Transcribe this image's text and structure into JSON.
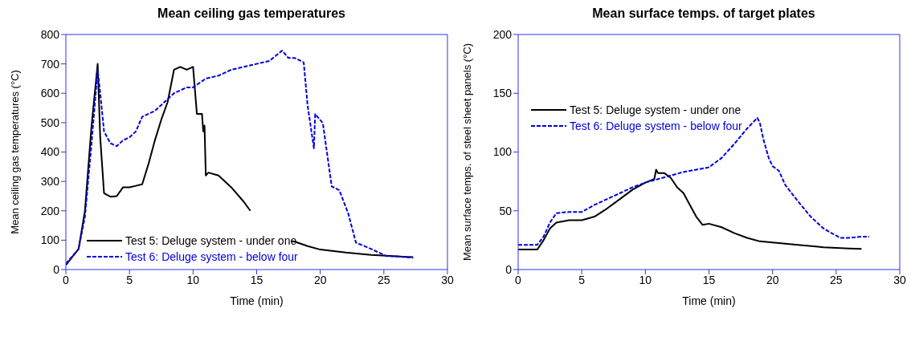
{
  "chart_data": [
    {
      "type": "line",
      "title": "Mean ceiling gas temperatures",
      "xlabel": "Time (min)",
      "ylabel": "Mean ceiling gas temperatures (°C)",
      "xlim": [
        0,
        30
      ],
      "xticks": [
        0,
        5,
        10,
        15,
        20,
        25,
        30
      ],
      "ylim": [
        0,
        800
      ],
      "yticks": [
        0,
        100,
        200,
        300,
        400,
        500,
        600,
        700,
        800
      ],
      "legend": "bottom left",
      "marker": "none",
      "series": [
        {
          "name": "Test 5: Deluge system - under one",
          "color": "#000000",
          "line_style": "solid",
          "x": [
            0,
            1,
            1.5,
            2,
            2.5,
            2.7,
            3,
            3.5,
            4,
            4.5,
            5,
            5.5,
            6,
            6.5,
            7,
            7.5,
            8,
            8.5,
            9,
            9.5,
            10,
            10.3,
            10.7,
            10.8,
            10.9,
            11,
            11.2,
            12,
            13,
            14,
            14.5,
            15.5,
            17.7,
            18,
            19,
            20,
            22,
            24,
            26,
            27.3
          ],
          "values": [
            15,
            70,
            200,
            480,
            700,
            450,
            260,
            248,
            250,
            280,
            280,
            285,
            290,
            360,
            440,
            510,
            570,
            680,
            690,
            680,
            690,
            530,
            530,
            470,
            490,
            320,
            330,
            320,
            280,
            230,
            200,
            null,
            97,
            95,
            80,
            68,
            58,
            50,
            45,
            42
          ]
        },
        {
          "name": "Test 6: Deluge system - below four",
          "color": "#0000dd",
          "line_style": "dashed",
          "x": [
            0,
            1,
            1.5,
            2,
            2.5,
            2.7,
            3,
            3.5,
            4,
            4.5,
            5,
            5.5,
            6,
            6.5,
            7,
            7.5,
            8,
            8.5,
            9,
            9.5,
            10,
            11,
            12,
            13,
            14,
            15,
            16,
            17,
            17.5,
            18,
            18.7,
            19,
            19.5,
            19.6,
            20.2,
            20.9,
            21.5,
            22.2,
            22.8,
            24,
            25.2,
            26,
            27.3
          ],
          "values": [
            20,
            70,
            180,
            420,
            680,
            600,
            470,
            430,
            420,
            440,
            450,
            470,
            520,
            530,
            540,
            560,
            580,
            600,
            610,
            620,
            620,
            650,
            660,
            680,
            690,
            700,
            710,
            745,
            720,
            720,
            705,
            560,
            413,
            529,
            499,
            283,
            270,
            191,
            92,
            70,
            46,
            45,
            40
          ]
        }
      ]
    },
    {
      "type": "line",
      "title": "Mean surface temps. of target plates",
      "xlabel": "Time (min)",
      "ylabel": "Mean surface temps. of steel sheet panels (°C)",
      "xlim": [
        0,
        30
      ],
      "xticks": [
        0,
        5,
        10,
        15,
        20,
        25,
        30
      ],
      "ylim": [
        0,
        200
      ],
      "yticks": [
        0,
        50,
        100,
        150,
        200
      ],
      "legend": "top left",
      "marker": "none",
      "series": [
        {
          "name": "Test 5: Deluge system - under one",
          "color": "#000000",
          "line_style": "solid",
          "x": [
            0,
            1.5,
            2,
            2.5,
            3,
            4,
            5,
            6,
            7,
            8,
            9,
            10,
            10.7,
            10.85,
            11,
            11.5,
            12,
            12.5,
            13,
            13.5,
            14,
            14.5,
            15,
            16,
            17,
            18,
            19,
            20,
            22,
            24,
            26,
            27
          ],
          "values": [
            17,
            17,
            25,
            35,
            40,
            42,
            42,
            45,
            52,
            60,
            68,
            74,
            77,
            85,
            82,
            82,
            78,
            70,
            65,
            55,
            45,
            38,
            39,
            36,
            31,
            27,
            24,
            23,
            21,
            19,
            18,
            17.5
          ]
        },
        {
          "name": "Test 6: Deluge system - below four",
          "color": "#0000dd",
          "line_style": "dashed",
          "x": [
            0,
            1.5,
            2,
            2.5,
            3,
            4,
            5,
            6,
            7,
            8,
            9,
            10,
            11,
            12,
            13,
            14,
            15,
            16,
            17,
            18,
            18.8,
            19,
            19.3,
            19.7,
            20,
            20.5,
            21,
            22,
            23,
            24,
            25.3,
            26,
            27,
            27.6
          ],
          "values": [
            21,
            21,
            28,
            40,
            48,
            49,
            49,
            55,
            60,
            65,
            70,
            74,
            77,
            80,
            83,
            85,
            87,
            95,
            107,
            120,
            129,
            125,
            110,
            95,
            88,
            84,
            72,
            58,
            45,
            35,
            27,
            27,
            28,
            28
          ]
        }
      ]
    }
  ]
}
